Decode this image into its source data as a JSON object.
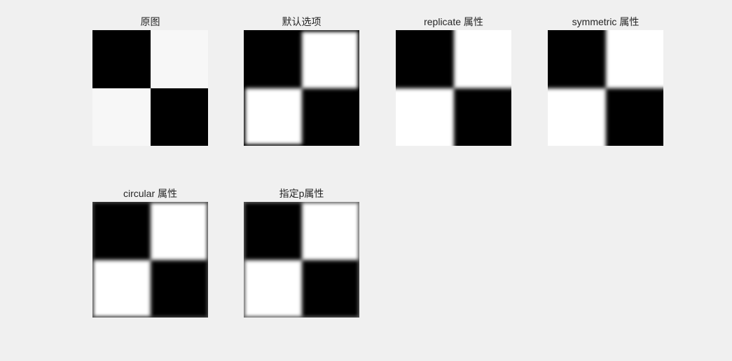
{
  "figure": {
    "background": "#f0f0f0",
    "panels": [
      {
        "title": "原图",
        "mode": "original"
      },
      {
        "title": "默认选项",
        "mode": "default"
      },
      {
        "title": "replicate 属性",
        "mode": "replicate"
      },
      {
        "title": "symmetric 属性",
        "mode": "symmetric"
      },
      {
        "title": "circular 属性",
        "mode": "circular"
      },
      {
        "title": "指定p属性",
        "mode": "specified-p"
      }
    ]
  }
}
